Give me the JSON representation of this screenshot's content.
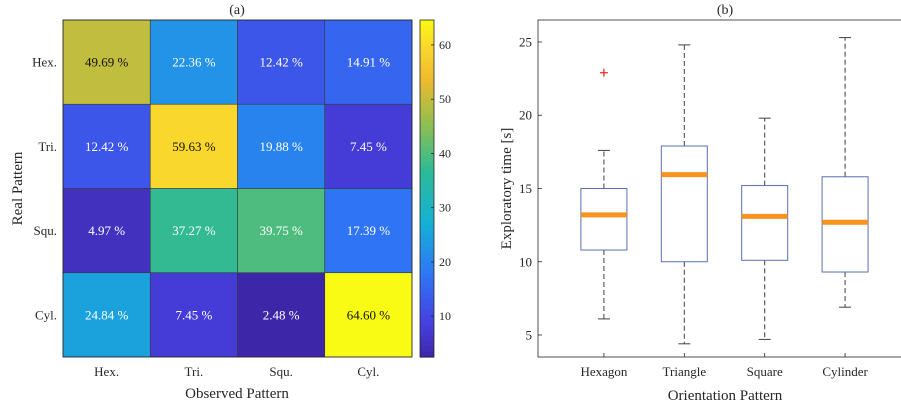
{
  "chart_data": [
    {
      "type": "heatmap",
      "title": "(a)",
      "xlabel": "Observed Pattern",
      "ylabel": "Real Pattern",
      "x_categories": [
        "Hex.",
        "Tri.",
        "Squ.",
        "Cyl."
      ],
      "y_categories": [
        "Hex.",
        "Tri.",
        "Squ.",
        "Cyl."
      ],
      "values": [
        [
          49.69,
          22.36,
          12.42,
          14.91
        ],
        [
          12.42,
          59.63,
          19.88,
          7.45
        ],
        [
          4.97,
          37.27,
          39.75,
          17.39
        ],
        [
          24.84,
          7.45,
          2.48,
          64.6
        ]
      ],
      "cell_labels": [
        [
          "49.69 %",
          "22.36 %",
          "12.42 %",
          "14.91 %"
        ],
        [
          "12.42 %",
          "59.63 %",
          "19.88 %",
          "7.45 %"
        ],
        [
          "4.97 %",
          "37.27 %",
          "39.75 %",
          "17.39 %"
        ],
        [
          "24.84 %",
          "7.45 %",
          "2.48 %",
          "64.60 %"
        ]
      ],
      "colorbar": {
        "range": [
          2.48,
          64.6
        ],
        "ticks": [
          "10",
          "20",
          "30",
          "40",
          "50",
          "60"
        ],
        "colormap": "parula"
      }
    },
    {
      "type": "box",
      "title": "(b)",
      "xlabel": "Orientation Pattern",
      "ylabel": "Exploratory time [s]",
      "categories": [
        "Hexagon",
        "Triangle",
        "Square",
        "Cylinder"
      ],
      "ylim": [
        3.5,
        26.5
      ],
      "yticks": [
        "5",
        "10",
        "15",
        "20",
        "25"
      ],
      "boxes": [
        {
          "whisker_low": 6.1,
          "q1": 10.8,
          "median": 13.2,
          "q3": 15.0,
          "whisker_high": 17.6,
          "outliers": [
            22.9
          ]
        },
        {
          "whisker_low": 4.4,
          "q1": 10.0,
          "median": 15.95,
          "q3": 17.9,
          "whisker_high": 24.8,
          "outliers": []
        },
        {
          "whisker_low": 4.7,
          "q1": 10.1,
          "median": 13.1,
          "q3": 15.2,
          "whisker_high": 19.8,
          "outliers": []
        },
        {
          "whisker_low": 6.9,
          "q1": 9.3,
          "median": 12.7,
          "q3": 15.8,
          "whisker_high": 25.3,
          "outliers": []
        }
      ],
      "colors": {
        "box": "#5a6fb5",
        "median": "#f7931e",
        "whisker": "#404040",
        "outlier": "#e8261c"
      }
    }
  ]
}
